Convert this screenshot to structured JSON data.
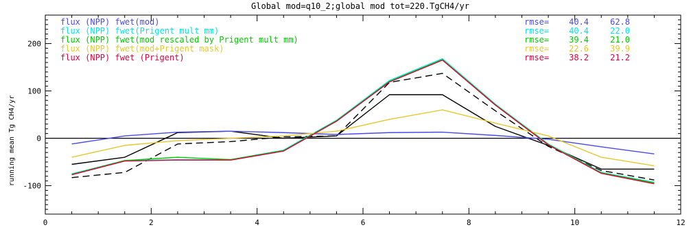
{
  "chart_data": {
    "type": "line",
    "title": "Global mod=q10_2;global mod tot=220.TgCH4/yr",
    "xlabel": "",
    "ylabel": "running mean Tg CH4/yr",
    "xlim": [
      0,
      12
    ],
    "ylim": [
      -160,
      260
    ],
    "x_ticks": [
      0,
      2,
      4,
      6,
      8,
      10,
      12
    ],
    "y_ticks": [
      -100,
      0,
      100,
      200
    ],
    "x": [
      0.5,
      1.5,
      2.5,
      3.5,
      4.5,
      5.5,
      6.5,
      7.5,
      8.5,
      9.5,
      10.5,
      11.5
    ],
    "series": [
      {
        "name": "flux (NPP) fwet(mod)",
        "color": "#4a4ae6",
        "rmse": "40.4",
        "rmse2": "62.8",
        "values": [
          -12,
          5,
          13,
          15,
          12,
          8,
          12,
          13,
          6,
          -2,
          -18,
          -33
        ]
      },
      {
        "name": "flux (NPP) fwet(Prigent mult mm)",
        "color": "#00e6e6",
        "rmse": "40.4",
        "rmse2": "22.0",
        "values": [
          -75,
          -47,
          -45,
          -45,
          -25,
          38,
          122,
          168,
          72,
          -12,
          -72,
          -93
        ]
      },
      {
        "name": "flux (NPP) fwet(mod rescaled by Prigent mult mm)",
        "color": "#00cc00",
        "rmse": "39.4",
        "rmse2": "21.0",
        "values": [
          -76,
          -47,
          -40,
          -45,
          -26,
          37,
          120,
          166,
          71,
          -13,
          -73,
          -94
        ]
      },
      {
        "name": "flux (NPP) fwet(mod+Prigent mask)",
        "color": "#e6c830",
        "rmse": "22.6",
        "rmse2": "39.9",
        "values": [
          -40,
          -15,
          -5,
          0,
          5,
          15,
          40,
          60,
          32,
          5,
          -40,
          -58
        ]
      },
      {
        "name": "flux (NPP) fwet (Prigent)",
        "color": "#e0003c",
        "rmse": "38.2",
        "rmse2": "21.2",
        "values": [
          -77,
          -48,
          -46,
          -46,
          -27,
          36,
          119,
          165,
          70,
          -14,
          -74,
          -96
        ]
      },
      {
        "name": "",
        "color": "#000000",
        "dash": "10 6",
        "legend": false,
        "values": [
          -83,
          -72,
          -12,
          -7,
          3,
          5,
          118,
          137,
          58,
          -17,
          -68,
          -88
        ]
      },
      {
        "name": "",
        "color": "#000000",
        "legend": false,
        "values": [
          -55,
          -40,
          12,
          15,
          0,
          5,
          92,
          92,
          25,
          -15,
          -65,
          -65
        ]
      }
    ],
    "zero_line": true,
    "grid": false,
    "legend_position": "top"
  }
}
